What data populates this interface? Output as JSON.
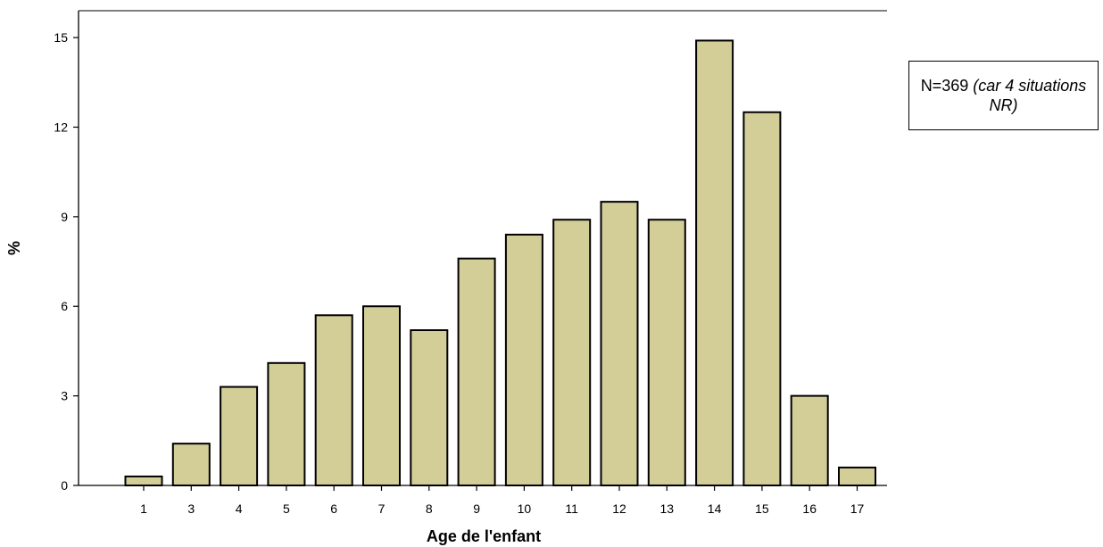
{
  "chart_data": {
    "type": "bar",
    "title": "",
    "xlabel": "Age de l'enfant",
    "ylabel": "%",
    "categories": [
      "1",
      "3",
      "4",
      "5",
      "6",
      "7",
      "8",
      "9",
      "10",
      "11",
      "12",
      "13",
      "14",
      "15",
      "16",
      "17"
    ],
    "values": [
      0.3,
      1.4,
      3.3,
      4.1,
      5.7,
      6.0,
      5.2,
      7.6,
      8.4,
      8.9,
      9.5,
      8.9,
      14.9,
      12.5,
      3.0,
      0.6
    ],
    "ylim": [
      0,
      15.9
    ],
    "yticks": [
      "0",
      "3",
      "6",
      "9",
      "12",
      "15"
    ],
    "grid": false,
    "colors": {
      "bar_fill": "#d3cd98",
      "bar_stroke": "#000000"
    }
  },
  "note": {
    "prefix": "N=369",
    "italic": "(car 4 situations NR)"
  }
}
